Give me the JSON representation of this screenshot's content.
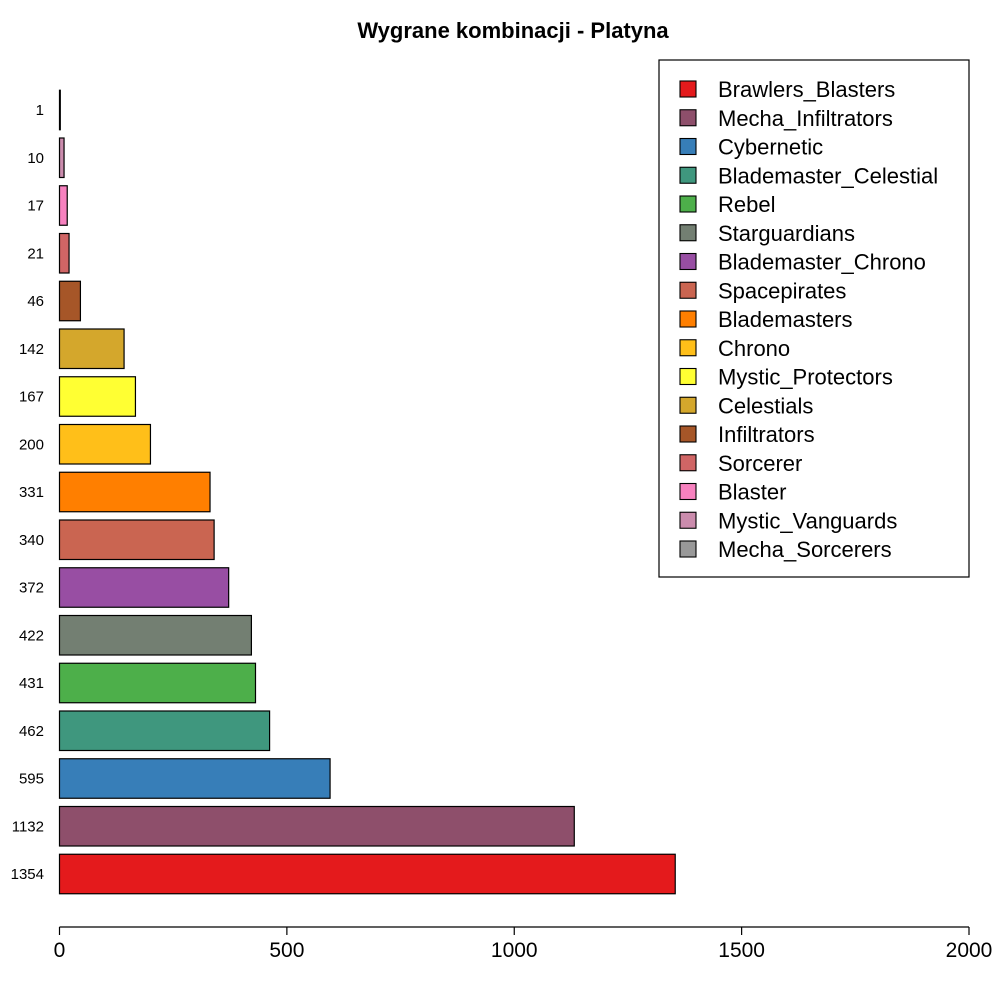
{
  "chart_data": {
    "type": "bar",
    "orientation": "horizontal",
    "title": "Wygrane kombinacji - Platyna",
    "xlabel": "",
    "ylabel": "",
    "xlim": [
      0,
      2000
    ],
    "x_ticks": [
      0,
      500,
      1000,
      1500,
      2000
    ],
    "grid": false,
    "legend_position": "top-right",
    "bars": [
      {
        "label": "1354",
        "value": 1354,
        "series": "Brawlers_Blasters",
        "color": "#E41A1C"
      },
      {
        "label": "1132",
        "value": 1132,
        "series": "Mecha_Infiltrators",
        "color": "#8E4F6B"
      },
      {
        "label": "595",
        "value": 595,
        "series": "Cybernetic",
        "color": "#377EB8"
      },
      {
        "label": "462",
        "value": 462,
        "series": "Blademaster_Celestial",
        "color": "#3F977E"
      },
      {
        "label": "431",
        "value": 431,
        "series": "Rebel",
        "color": "#4DAF4A"
      },
      {
        "label": "422",
        "value": 422,
        "series": "Starguardians",
        "color": "#737F72"
      },
      {
        "label": "372",
        "value": 372,
        "series": "Blademaster_Chrono",
        "color": "#984EA3"
      },
      {
        "label": "340",
        "value": 340,
        "series": "Spacepirates",
        "color": "#CA6551"
      },
      {
        "label": "331",
        "value": 331,
        "series": "Blademasters",
        "color": "#FF7F00"
      },
      {
        "label": "200",
        "value": 200,
        "series": "Chrono",
        "color": "#FFBF19"
      },
      {
        "label": "167",
        "value": 167,
        "series": "Mystic_Protectors",
        "color": "#FFFF33"
      },
      {
        "label": "142",
        "value": 142,
        "series": "Celestials",
        "color": "#D4A72C"
      },
      {
        "label": "46",
        "value": 46,
        "series": "Infiltrators",
        "color": "#A65628"
      },
      {
        "label": "21",
        "value": 21,
        "series": "Sorcerer",
        "color": "#D06565"
      },
      {
        "label": "17",
        "value": 17,
        "series": "Blaster",
        "color": "#F781BF"
      },
      {
        "label": "10",
        "value": 10,
        "series": "Mystic_Vanguards",
        "color": "#CB8CAD"
      },
      {
        "label": "1",
        "value": 1,
        "series": "Mecha_Sorcerers",
        "color": "#999999"
      }
    ],
    "legend": [
      {
        "name": "Brawlers_Blasters",
        "color": "#E41A1C"
      },
      {
        "name": "Mecha_Infiltrators",
        "color": "#8E4F6B"
      },
      {
        "name": "Cybernetic",
        "color": "#377EB8"
      },
      {
        "name": "Blademaster_Celestial",
        "color": "#3F977E"
      },
      {
        "name": "Rebel",
        "color": "#4DAF4A"
      },
      {
        "name": "Starguardians",
        "color": "#737F72"
      },
      {
        "name": "Blademaster_Chrono",
        "color": "#984EA3"
      },
      {
        "name": "Spacepirates",
        "color": "#CA6551"
      },
      {
        "name": "Blademasters",
        "color": "#FF7F00"
      },
      {
        "name": "Chrono",
        "color": "#FFBF19"
      },
      {
        "name": "Mystic_Protectors",
        "color": "#FFFF33"
      },
      {
        "name": "Celestials",
        "color": "#D4A72C"
      },
      {
        "name": "Infiltrators",
        "color": "#A65628"
      },
      {
        "name": "Sorcerer",
        "color": "#D06565"
      },
      {
        "name": "Blaster",
        "color": "#F781BF"
      },
      {
        "name": "Mystic_Vanguards",
        "color": "#CB8CAD"
      },
      {
        "name": "Mecha_Sorcerers",
        "color": "#999999"
      }
    ]
  }
}
